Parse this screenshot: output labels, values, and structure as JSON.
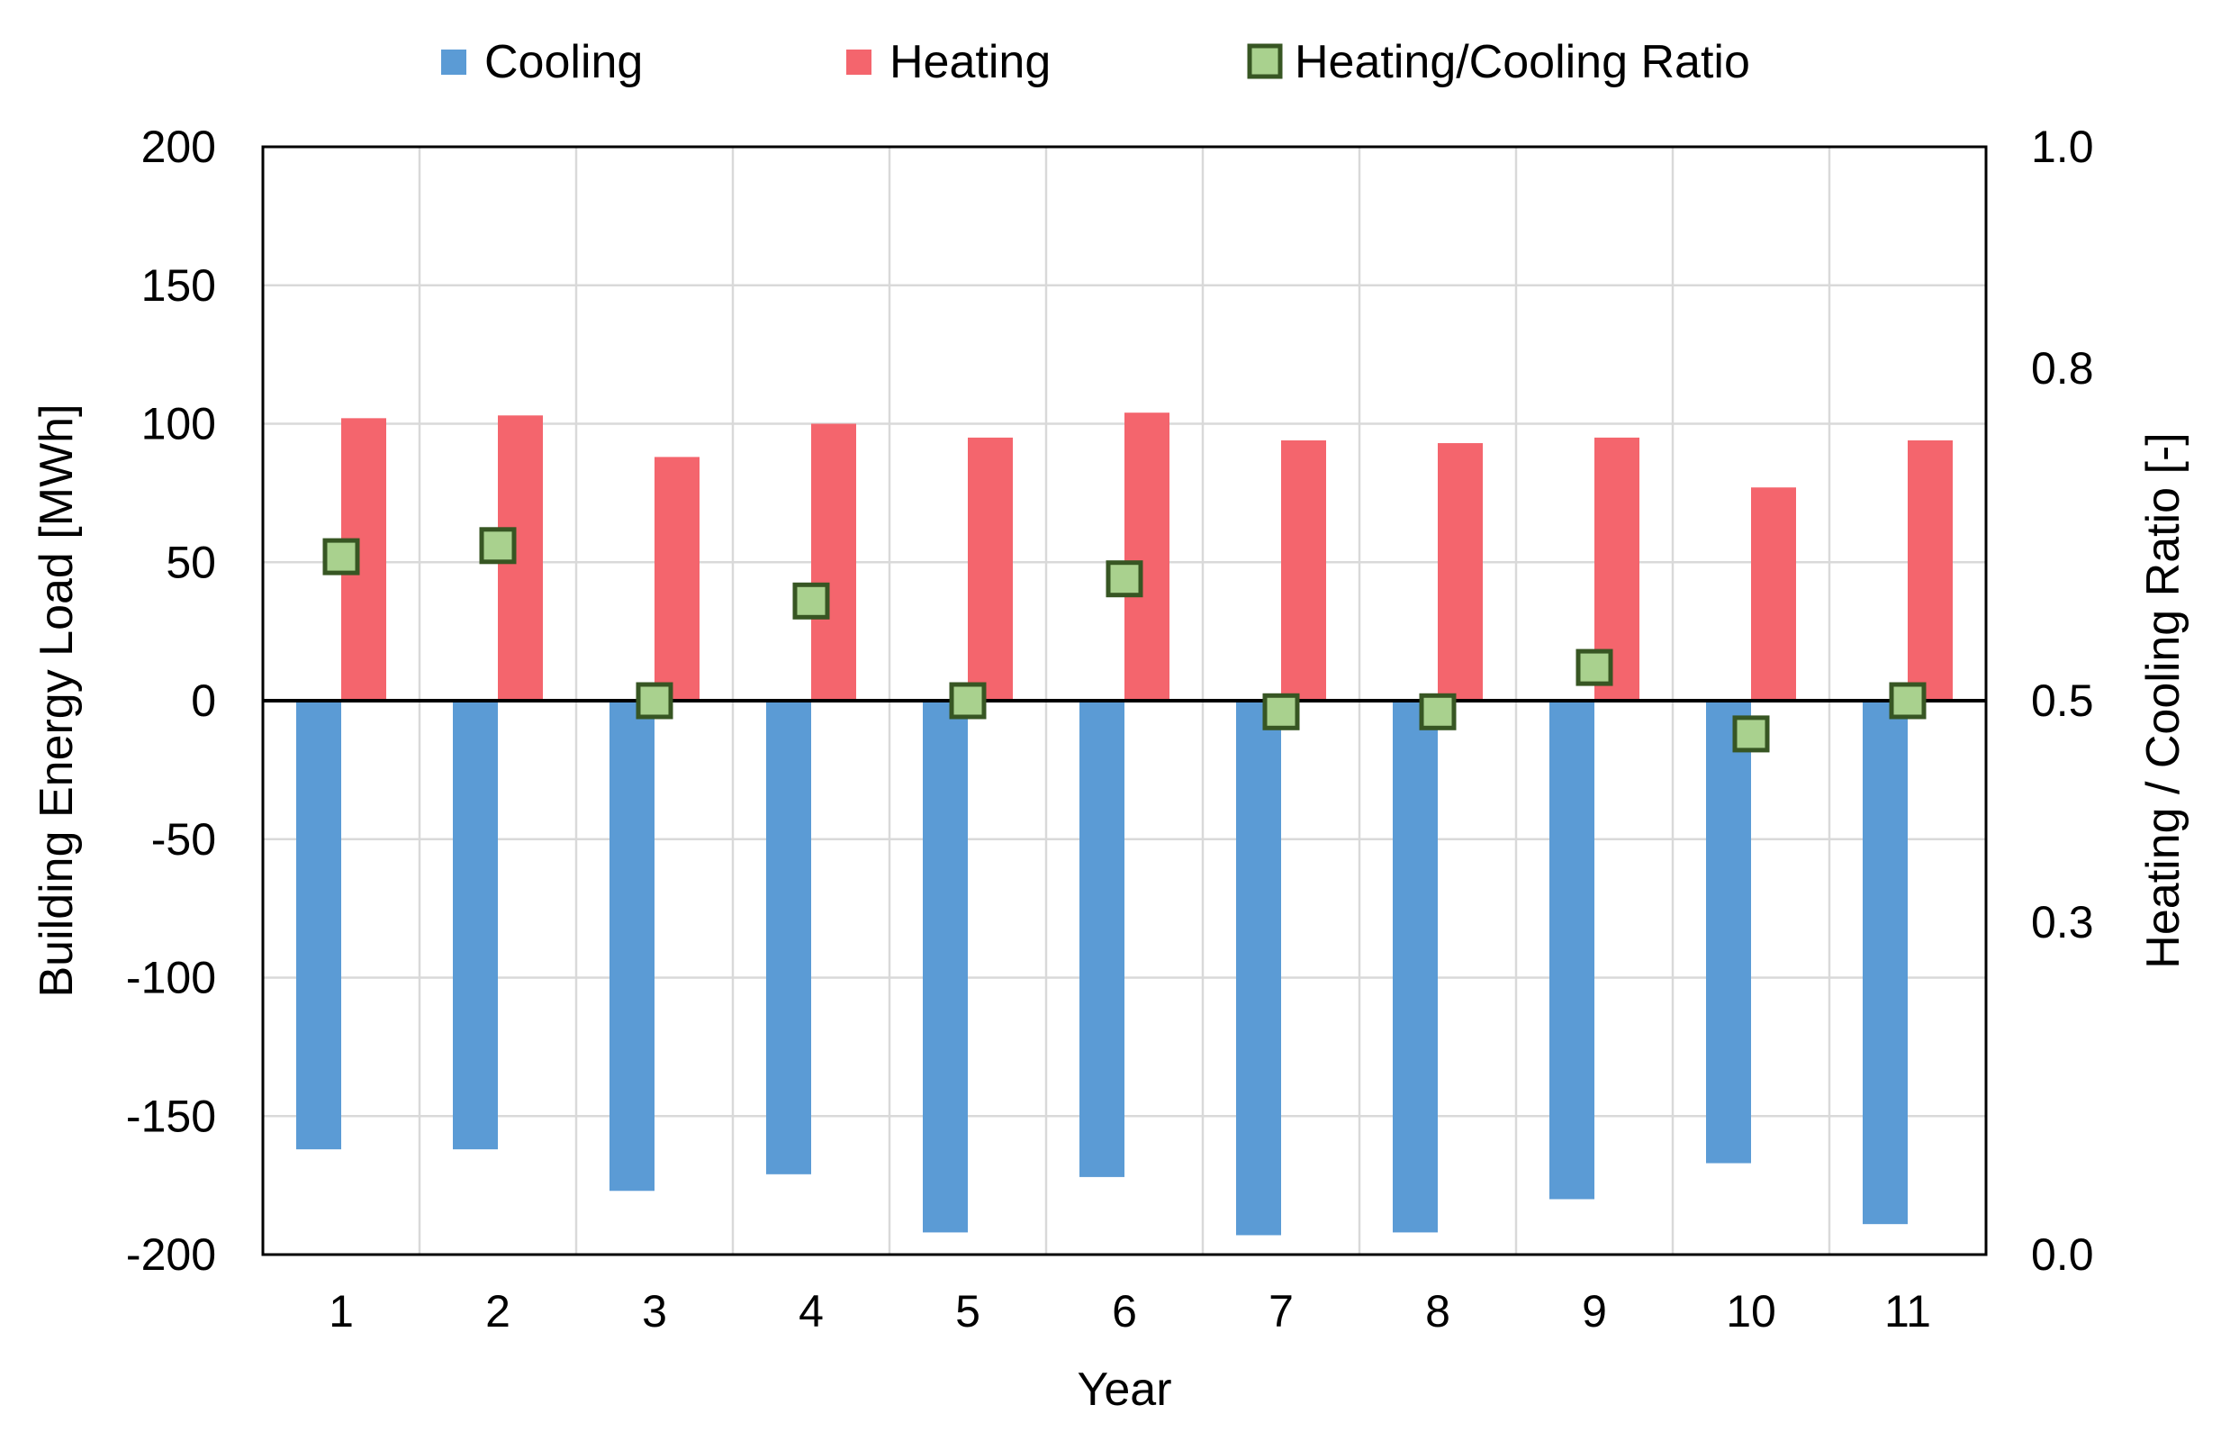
{
  "chart_data": {
    "type": "bar",
    "title": "",
    "xlabel": "Year",
    "ylabel": "Building Energy Load  [MWh]",
    "y2label": "Heating / Cooling Ratio [-]",
    "categories": [
      "1",
      "2",
      "3",
      "4",
      "5",
      "6",
      "7",
      "8",
      "9",
      "10",
      "11"
    ],
    "ylim": [
      -200,
      200
    ],
    "yticks": [
      200,
      150,
      100,
      50,
      0,
      -50,
      -100,
      -150,
      -200
    ],
    "ytick_labels": [
      "200",
      "150",
      "100",
      "50",
      "0",
      "-50",
      "-100",
      "-150",
      "-200"
    ],
    "y2lim": [
      0.0,
      1.0
    ],
    "y2ticks": [
      1.0,
      0.8,
      0.5,
      0.3,
      0.0
    ],
    "y2tick_labels": [
      "1.0",
      "0.8",
      "0.5",
      "0.3",
      "0.0"
    ],
    "grid": true,
    "legend_position": "top",
    "series": [
      {
        "name": "Cooling",
        "kind": "bar",
        "axis": "left",
        "color": "#5b9bd5",
        "values": [
          -162,
          -162,
          -177,
          -171,
          -192,
          -172,
          -193,
          -192,
          -180,
          -167,
          -189
        ]
      },
      {
        "name": "Heating",
        "kind": "bar",
        "axis": "left",
        "color": "#f4656d",
        "values": [
          102,
          103,
          88,
          100,
          95,
          104,
          94,
          93,
          95,
          77,
          94
        ]
      },
      {
        "name": "Heating/Cooling Ratio",
        "kind": "marker",
        "axis": "right",
        "color": "#a9d18e",
        "edge_color": "#375623",
        "values": [
          0.63,
          0.64,
          0.5,
          0.59,
          0.5,
          0.61,
          0.49,
          0.49,
          0.53,
          0.47,
          0.5
        ]
      }
    ]
  }
}
